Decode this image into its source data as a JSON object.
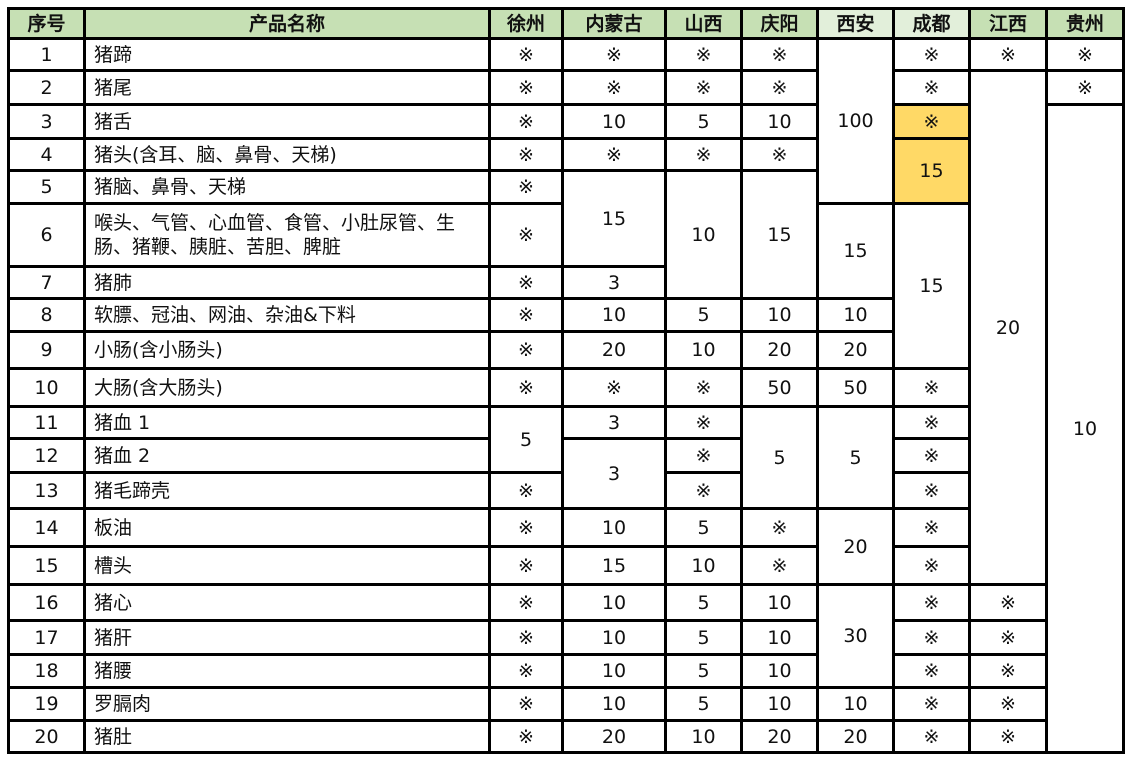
{
  "header": {
    "columns": [
      "序号",
      "产品名称",
      "徐州",
      "内蒙古",
      "山西",
      "庆阳",
      "西安",
      "成都",
      "江西",
      "贵州"
    ],
    "shades": [
      "dark",
      "dark",
      "dark",
      "dark",
      "dark",
      "dark",
      "light",
      "light",
      "dark",
      "dark"
    ]
  },
  "colors": {
    "header_dark": "#c6e0b4",
    "header_light": "#e2efda",
    "highlight": "#ffd966",
    "border": "#000000"
  },
  "rows": [
    {
      "no": "1",
      "name": "猪蹄",
      "cells": [
        {
          "v": "※"
        },
        {
          "v": "※"
        },
        {
          "v": "※"
        },
        {
          "v": "※"
        },
        {
          "v": "100",
          "span": 5
        },
        {
          "v": "※"
        },
        {
          "v": "※"
        },
        {
          "v": "※"
        }
      ]
    },
    {
      "no": "2",
      "name": "猪尾",
      "cells": [
        {
          "v": "※"
        },
        {
          "v": "※"
        },
        {
          "v": "※"
        },
        {
          "v": "※"
        },
        {
          "v": "※"
        },
        {
          "v": "20",
          "span": 14
        },
        {
          "v": "※"
        }
      ]
    },
    {
      "no": "3",
      "name": "猪舌",
      "cells": [
        {
          "v": "※"
        },
        {
          "v": "10"
        },
        {
          "v": "5"
        },
        {
          "v": "10"
        },
        {
          "v": "※",
          "highlight": true
        },
        {
          "v": "10",
          "span": 18
        }
      ]
    },
    {
      "no": "4",
      "name": "猪头(含耳、脑、鼻骨、天梯)",
      "cells": [
        {
          "v": "※"
        },
        {
          "v": "※"
        },
        {
          "v": "※"
        },
        {
          "v": "※"
        },
        {
          "v": "15",
          "span": 2,
          "highlight": true
        }
      ]
    },
    {
      "no": "5",
      "name": "猪脑、鼻骨、天梯",
      "cells": [
        {
          "v": "※"
        },
        {
          "v": "15",
          "span": 2
        },
        {
          "v": "10",
          "span": 3
        },
        {
          "v": "15",
          "span": 3
        }
      ]
    },
    {
      "no": "6",
      "name": "喉头、气管、心血管、食管、小肚尿管、生肠、猪鞭、胰脏、苦胆、脾脏",
      "cells": [
        {
          "v": "※"
        },
        {
          "v": "15",
          "span": 2
        },
        {
          "v": "15",
          "span": 4
        }
      ]
    },
    {
      "no": "7",
      "name": "猪肺",
      "cells": [
        {
          "v": "※"
        },
        {
          "v": "3"
        }
      ]
    },
    {
      "no": "8",
      "name": "软膘、冠油、网油、杂油&下料",
      "cells": [
        {
          "v": "※"
        },
        {
          "v": "10"
        },
        {
          "v": "5"
        },
        {
          "v": "10"
        },
        {
          "v": "10"
        }
      ]
    },
    {
      "no": "9",
      "name": "小肠(含小肠头)",
      "cells": [
        {
          "v": "※"
        },
        {
          "v": "20"
        },
        {
          "v": "10"
        },
        {
          "v": "20"
        },
        {
          "v": "20"
        }
      ]
    },
    {
      "no": "10",
      "name": "大肠(含大肠头)",
      "cells": [
        {
          "v": "※"
        },
        {
          "v": "※"
        },
        {
          "v": "※"
        },
        {
          "v": "50"
        },
        {
          "v": "50"
        },
        {
          "v": "※"
        }
      ]
    },
    {
      "no": "11",
      "name": "猪血 1",
      "cells": [
        {
          "v": "5",
          "span": 2
        },
        {
          "v": "3"
        },
        {
          "v": "※"
        },
        {
          "v": "5",
          "span": 3
        },
        {
          "v": "5",
          "span": 3
        },
        {
          "v": "※"
        }
      ]
    },
    {
      "no": "12",
      "name": "猪血 2",
      "cells": [
        {
          "v": "3",
          "span": 2
        },
        {
          "v": "※"
        },
        {
          "v": "※"
        }
      ]
    },
    {
      "no": "13",
      "name": "猪毛蹄壳",
      "cells": [
        {
          "v": "※"
        },
        {
          "v": "※"
        },
        {
          "v": "※"
        }
      ]
    },
    {
      "no": "14",
      "name": "板油",
      "cells": [
        {
          "v": "※"
        },
        {
          "v": "10"
        },
        {
          "v": "5"
        },
        {
          "v": "※"
        },
        {
          "v": "20",
          "span": 2
        },
        {
          "v": "※"
        }
      ]
    },
    {
      "no": "15",
      "name": "槽头",
      "cells": [
        {
          "v": "※"
        },
        {
          "v": "15"
        },
        {
          "v": "10"
        },
        {
          "v": "※"
        },
        {
          "v": "※"
        }
      ]
    },
    {
      "no": "16",
      "name": "猪心",
      "cells": [
        {
          "v": "※"
        },
        {
          "v": "10"
        },
        {
          "v": "5"
        },
        {
          "v": "10"
        },
        {
          "v": "30",
          "span": 3
        },
        {
          "v": "※"
        },
        {
          "v": "※"
        }
      ]
    },
    {
      "no": "17",
      "name": "猪肝",
      "cells": [
        {
          "v": "※"
        },
        {
          "v": "10"
        },
        {
          "v": "5"
        },
        {
          "v": "10"
        },
        {
          "v": "※"
        },
        {
          "v": "※"
        }
      ]
    },
    {
      "no": "18",
      "name": "猪腰",
      "cells": [
        {
          "v": "※"
        },
        {
          "v": "10"
        },
        {
          "v": "5"
        },
        {
          "v": "10"
        },
        {
          "v": "※"
        },
        {
          "v": "※"
        }
      ]
    },
    {
      "no": "19",
      "name": "罗膈肉",
      "cells": [
        {
          "v": "※"
        },
        {
          "v": "10"
        },
        {
          "v": "5"
        },
        {
          "v": "10"
        },
        {
          "v": "10"
        },
        {
          "v": "※"
        },
        {
          "v": "※"
        }
      ]
    },
    {
      "no": "20",
      "name": "猪肚",
      "cells": [
        {
          "v": "※"
        },
        {
          "v": "20"
        },
        {
          "v": "10"
        },
        {
          "v": "20"
        },
        {
          "v": "20"
        },
        {
          "v": "※"
        },
        {
          "v": "※"
        }
      ]
    }
  ]
}
